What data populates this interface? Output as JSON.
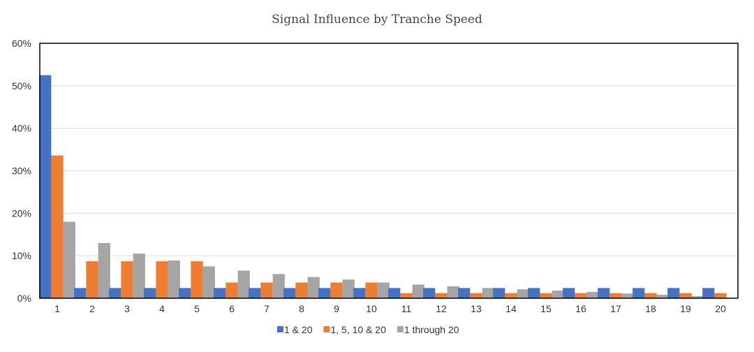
{
  "chart_data": {
    "type": "bar",
    "title": "Signal Influence by Tranche Speed",
    "categories": [
      "1",
      "2",
      "3",
      "4",
      "5",
      "6",
      "7",
      "8",
      "9",
      "10",
      "11",
      "12",
      "13",
      "14",
      "15",
      "16",
      "17",
      "18",
      "19",
      "20"
    ],
    "series": [
      {
        "name": "1 & 20",
        "color": "#4472C4",
        "values": [
          52.5,
          2.4,
          2.4,
          2.4,
          2.4,
          2.4,
          2.4,
          2.4,
          2.4,
          2.4,
          2.4,
          2.4,
          2.4,
          2.4,
          2.4,
          2.4,
          2.4,
          2.4,
          2.4,
          2.4
        ]
      },
      {
        "name": "1, 5, 10 & 20",
        "color": "#ED7D31",
        "values": [
          33.6,
          8.7,
          8.7,
          8.7,
          8.7,
          3.7,
          3.7,
          3.7,
          3.7,
          3.7,
          1.2,
          1.2,
          1.2,
          1.2,
          1.2,
          1.2,
          1.2,
          1.2,
          1.2,
          1.2
        ]
      },
      {
        "name": "1 through 20",
        "color": "#A5A5A5",
        "values": [
          18.0,
          13.0,
          10.5,
          8.9,
          7.5,
          6.5,
          5.7,
          5.0,
          4.4,
          3.7,
          3.2,
          2.8,
          2.4,
          2.1,
          1.8,
          1.5,
          1.1,
          0.8,
          0.5,
          0.0
        ]
      }
    ],
    "y_ticks": [
      "0%",
      "10%",
      "20%",
      "30%",
      "40%",
      "50%",
      "60%"
    ],
    "ylim": [
      0,
      60
    ],
    "grid": true,
    "legend_position": "bottom"
  }
}
